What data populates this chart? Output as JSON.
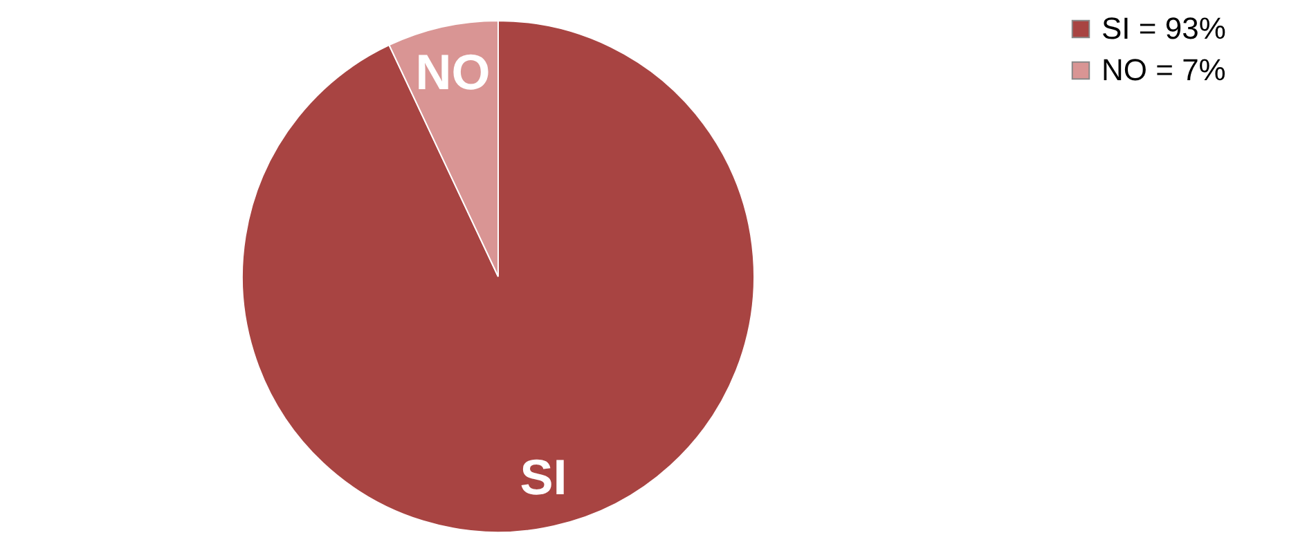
{
  "chart_data": {
    "type": "pie",
    "categories": [
      "SI = 93%",
      "NO = 7%"
    ],
    "values": [
      93,
      7
    ],
    "colors": [
      "#a84442",
      "#d99594"
    ],
    "annotations": [
      {
        "text": "SI",
        "x": "SI = 93%"
      },
      {
        "text": "NO",
        "x": "NO = 7%"
      }
    ],
    "legend": "right"
  }
}
